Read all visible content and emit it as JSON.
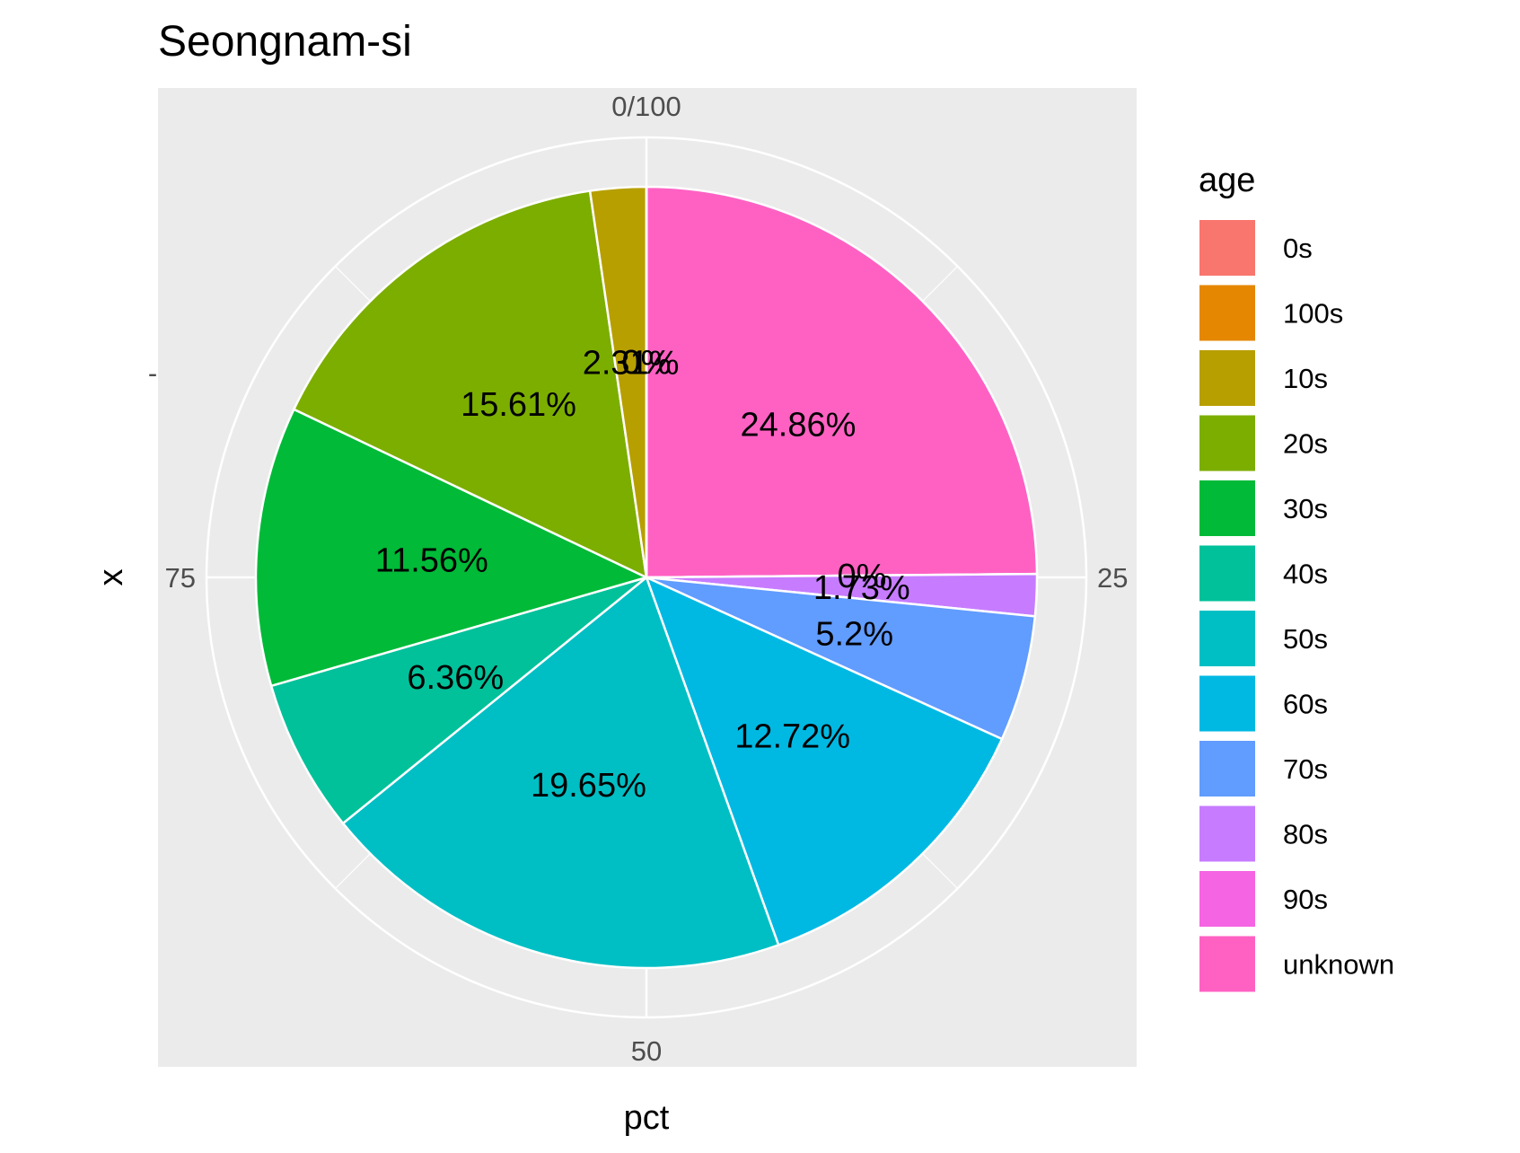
{
  "chart_data": {
    "type": "pie",
    "title": "Seongnam-si",
    "xlabel": "pct",
    "ylabel": "x",
    "y_tick": "-",
    "angle_ticks": [
      {
        "value": 0,
        "label": "0/100"
      },
      {
        "value": 25,
        "label": "25"
      },
      {
        "value": 50,
        "label": "50"
      },
      {
        "value": 75,
        "label": "75"
      }
    ],
    "legend": {
      "title": "age",
      "position": "right"
    },
    "slices": [
      {
        "category": "unknown",
        "value": 24.86,
        "label": "24.86%",
        "color": "#FF61C3"
      },
      {
        "category": "90s",
        "value": 0,
        "label": "0%",
        "color": "#F564E3"
      },
      {
        "category": "80s",
        "value": 1.73,
        "label": "1.73%",
        "color": "#C77CFF"
      },
      {
        "category": "70s",
        "value": 5.2,
        "label": "5.2%",
        "color": "#619CFF"
      },
      {
        "category": "60s",
        "value": 12.72,
        "label": "12.72%",
        "color": "#00B9E3"
      },
      {
        "category": "50s",
        "value": 19.65,
        "label": "19.65%",
        "color": "#00BFC4"
      },
      {
        "category": "40s",
        "value": 6.36,
        "label": "6.36%",
        "color": "#00C19A"
      },
      {
        "category": "30s",
        "value": 11.56,
        "label": "11.56%",
        "color": "#00BA38"
      },
      {
        "category": "20s",
        "value": 15.61,
        "label": "15.61%",
        "color": "#7CAE00"
      },
      {
        "category": "10s",
        "value": 2.31,
        "label": "2.31%",
        "color": "#B79F00"
      },
      {
        "category": "100s",
        "value": 0,
        "label": "0%",
        "color": "#E58700"
      },
      {
        "category": "0s",
        "value": 0,
        "label": "0%",
        "color": "#F8766D"
      }
    ],
    "legend_order": [
      "0s",
      "100s",
      "10s",
      "20s",
      "30s",
      "40s",
      "50s",
      "60s",
      "70s",
      "80s",
      "90s",
      "unknown"
    ],
    "panel_background": "#EBEBEB",
    "grid": true
  }
}
